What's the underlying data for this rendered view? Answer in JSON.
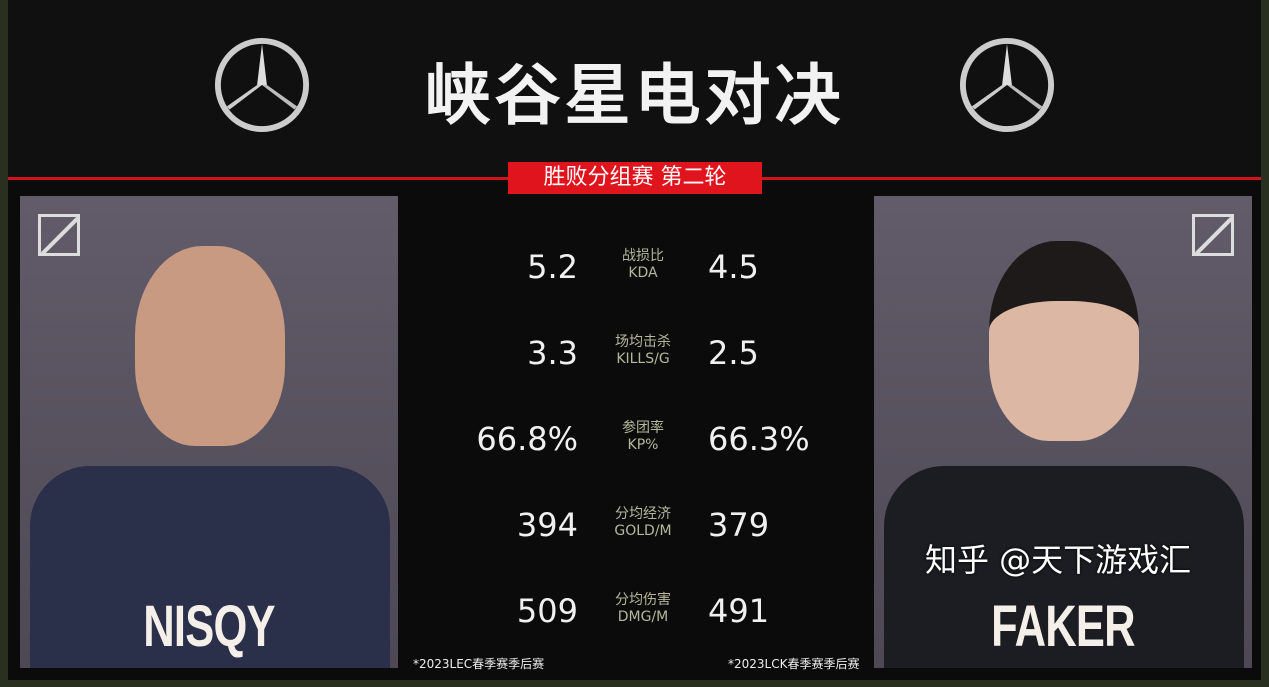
{
  "header": {
    "title": "峡谷星电对决",
    "subtitle": "胜败分组赛 第二轮",
    "brand_logo": "mercedes-star-icon"
  },
  "players": {
    "left": {
      "name": "NISQY",
      "note": "*2023LEC春季赛季后赛"
    },
    "right": {
      "name": "FAKER",
      "note": "*2023LCK春季赛季后赛"
    }
  },
  "stats": [
    {
      "label_cn": "战损比",
      "label_en": "KDA",
      "left": "5.2",
      "right": "4.5"
    },
    {
      "label_cn": "场均击杀",
      "label_en": "KILLS/G",
      "left": "3.3",
      "right": "2.5"
    },
    {
      "label_cn": "参团率",
      "label_en": "KP%",
      "left": "66.8%",
      "right": "66.3%"
    },
    {
      "label_cn": "分均经济",
      "label_en": "GOLD/M",
      "left": "394",
      "right": "379"
    },
    {
      "label_cn": "分均伤害",
      "label_en": "DMG/M",
      "left": "509",
      "right": "491"
    }
  ],
  "watermark": "知乎 @天下游戏汇",
  "colors": {
    "accent": "#e0141c",
    "label": "#b5b79a"
  }
}
